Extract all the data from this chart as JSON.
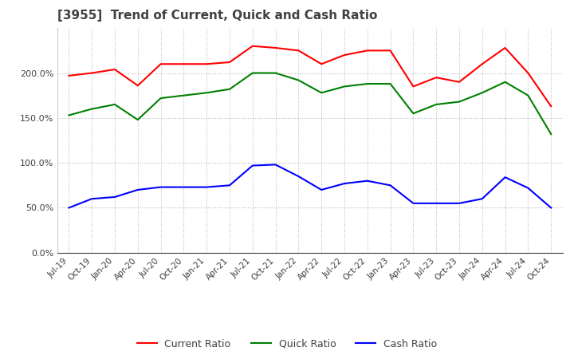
{
  "title": "[3955]  Trend of Current, Quick and Cash Ratio",
  "labels": [
    "Jul-19",
    "Oct-19",
    "Jan-20",
    "Apr-20",
    "Jul-20",
    "Oct-20",
    "Jan-21",
    "Apr-21",
    "Jul-21",
    "Oct-21",
    "Jan-22",
    "Apr-22",
    "Jul-22",
    "Oct-22",
    "Jan-23",
    "Apr-23",
    "Jul-23",
    "Oct-23",
    "Jan-24",
    "Apr-24",
    "Jul-24",
    "Oct-24"
  ],
  "current_ratio": [
    197,
    200,
    204,
    186,
    210,
    210,
    210,
    212,
    230,
    228,
    225,
    210,
    220,
    225,
    225,
    185,
    195,
    190,
    210,
    228,
    200,
    163
  ],
  "quick_ratio": [
    153,
    160,
    165,
    148,
    172,
    175,
    178,
    182,
    200,
    200,
    192,
    178,
    185,
    188,
    188,
    155,
    165,
    168,
    178,
    190,
    175,
    132
  ],
  "cash_ratio": [
    50,
    60,
    62,
    70,
    73,
    73,
    73,
    75,
    97,
    98,
    85,
    70,
    77,
    80,
    75,
    55,
    55,
    55,
    60,
    84,
    72,
    50
  ],
  "ylim": [
    0,
    250
  ],
  "yticks": [
    0,
    50,
    100,
    150,
    200
  ],
  "current_color": "#ff0000",
  "quick_color": "#008000",
  "cash_color": "#0000ff",
  "background_color": "#ffffff",
  "grid_color": "#bbbbbb",
  "title_color": "#404040",
  "title_fontsize": 11
}
